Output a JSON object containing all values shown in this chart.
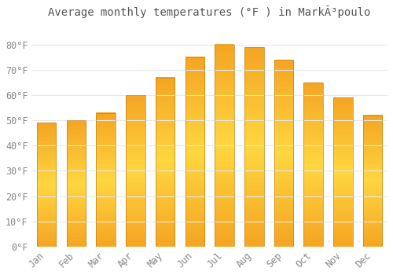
{
  "title": "Average monthly temperatures (°F ) in MarkÃ³poulo",
  "months": [
    "Jan",
    "Feb",
    "Mar",
    "Apr",
    "May",
    "Jun",
    "Jul",
    "Aug",
    "Sep",
    "Oct",
    "Nov",
    "Dec"
  ],
  "values": [
    49,
    50,
    53,
    60,
    67,
    75,
    80,
    79,
    74,
    65,
    59,
    52
  ],
  "bar_color": "#FBB017",
  "bar_edge_color": "#C8820A",
  "background_color": "#FFFFFF",
  "grid_color": "#E8E8E8",
  "text_color": "#888888",
  "ylim": [
    0,
    88
  ],
  "yticks": [
    0,
    10,
    20,
    30,
    40,
    50,
    60,
    70,
    80
  ],
  "ytick_labels": [
    "0°F",
    "10°F",
    "20°F",
    "30°F",
    "40°F",
    "50°F",
    "60°F",
    "70°F",
    "80°F"
  ],
  "title_fontsize": 10,
  "tick_fontsize": 8.5
}
